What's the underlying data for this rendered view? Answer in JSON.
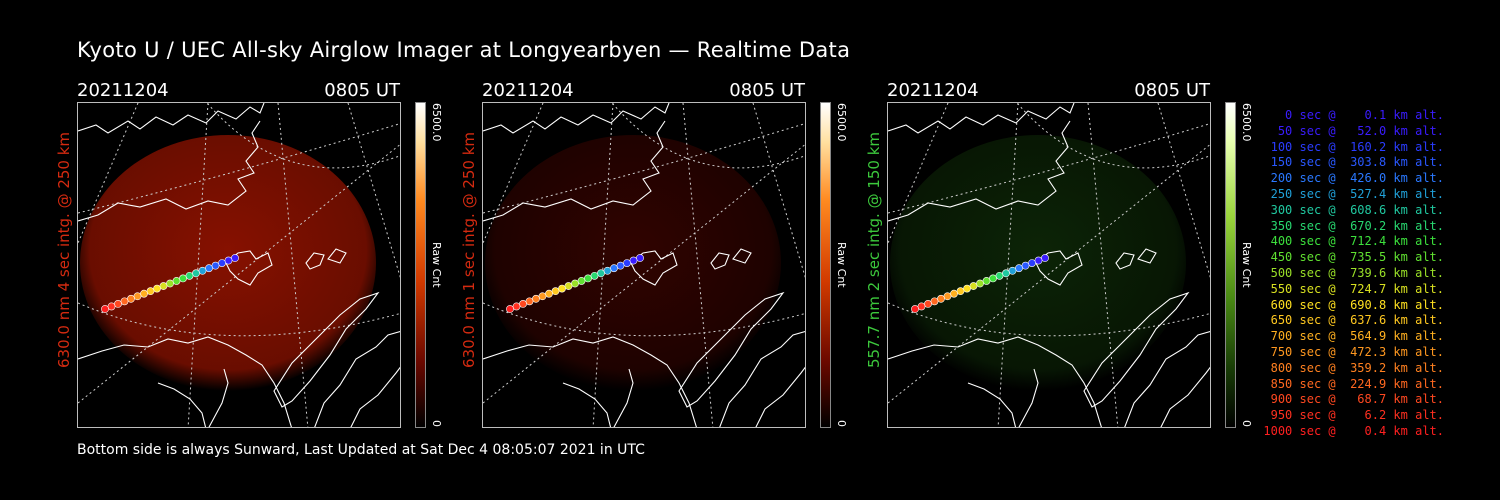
{
  "title": "Kyoto U / UEC All-sky Airglow Imager at Longyearbyen — Realtime Data",
  "panels": [
    {
      "date": "20211204",
      "time": "0805 UT",
      "label": "630.0 nm 4 sec intg. @ 250 km",
      "label_color": "#d42a10",
      "cbar_max": "6500.0",
      "cbar_min": "0",
      "cbar_unit": "Raw Cnt",
      "glow": "#c01800",
      "glow_level": 0.55
    },
    {
      "date": "20211204",
      "time": "0805 UT",
      "label": "630.0 nm 1 sec intg. @ 250 km",
      "label_color": "#d42a10",
      "cbar_max": "6500.0",
      "cbar_min": "0",
      "cbar_unit": "Raw Cnt",
      "glow": "#7a0800",
      "glow_level": 0.25
    },
    {
      "date": "20211204",
      "time": "0805 UT",
      "label": "557.7 nm 2 sec intg. @ 150 km",
      "label_color": "#3cc83c",
      "cbar_max": "6500.0",
      "cbar_min": "0",
      "cbar_unit": "Raw Cnt",
      "glow": "#1e5a10",
      "glow_level": 0.25
    }
  ],
  "footer": "Bottom side is always Sunward, Last Updated at Sat Dec  4 08:05:07 2021 in UTC",
  "legend": [
    {
      "text": "   0 sec @    0.1 km alt.",
      "color": "#3a1cff"
    },
    {
      "text": "  50 sec @   52.0 km alt.",
      "color": "#3a1cff"
    },
    {
      "text": " 100 sec @  160.2 km alt.",
      "color": "#2a3cff"
    },
    {
      "text": " 150 sec @  303.8 km alt.",
      "color": "#2a58ff"
    },
    {
      "text": " 200 sec @  426.0 km alt.",
      "color": "#2a78ff"
    },
    {
      "text": " 250 sec @  527.4 km alt.",
      "color": "#20a0d8"
    },
    {
      "text": " 300 sec @  608.6 km alt.",
      "color": "#20c8a0"
    },
    {
      "text": " 350 sec @  670.2 km alt.",
      "color": "#28d870"
    },
    {
      "text": " 400 sec @  712.4 km alt.",
      "color": "#3ce03c"
    },
    {
      "text": " 450 sec @  735.5 km alt.",
      "color": "#60e030"
    },
    {
      "text": " 500 sec @  739.6 km alt.",
      "color": "#9ae028"
    },
    {
      "text": " 550 sec @  724.7 km alt.",
      "color": "#d8e020"
    },
    {
      "text": " 600 sec @  690.8 km alt.",
      "color": "#ffe020"
    },
    {
      "text": " 650 sec @  637.6 km alt.",
      "color": "#ffc820"
    },
    {
      "text": " 700 sec @  564.9 km alt.",
      "color": "#ffb020"
    },
    {
      "text": " 750 sec @  472.3 km alt.",
      "color": "#ff9820"
    },
    {
      "text": " 800 sec @  359.2 km alt.",
      "color": "#ff8020"
    },
    {
      "text": " 850 sec @  224.9 km alt.",
      "color": "#ff6820"
    },
    {
      "text": " 900 sec @   68.7 km alt.",
      "color": "#ff4820"
    },
    {
      "text": " 950 sec @    6.2 km alt.",
      "color": "#ff3020"
    },
    {
      "text": "1000 sec @    0.4 km alt.",
      "color": "#ff2020"
    }
  ]
}
